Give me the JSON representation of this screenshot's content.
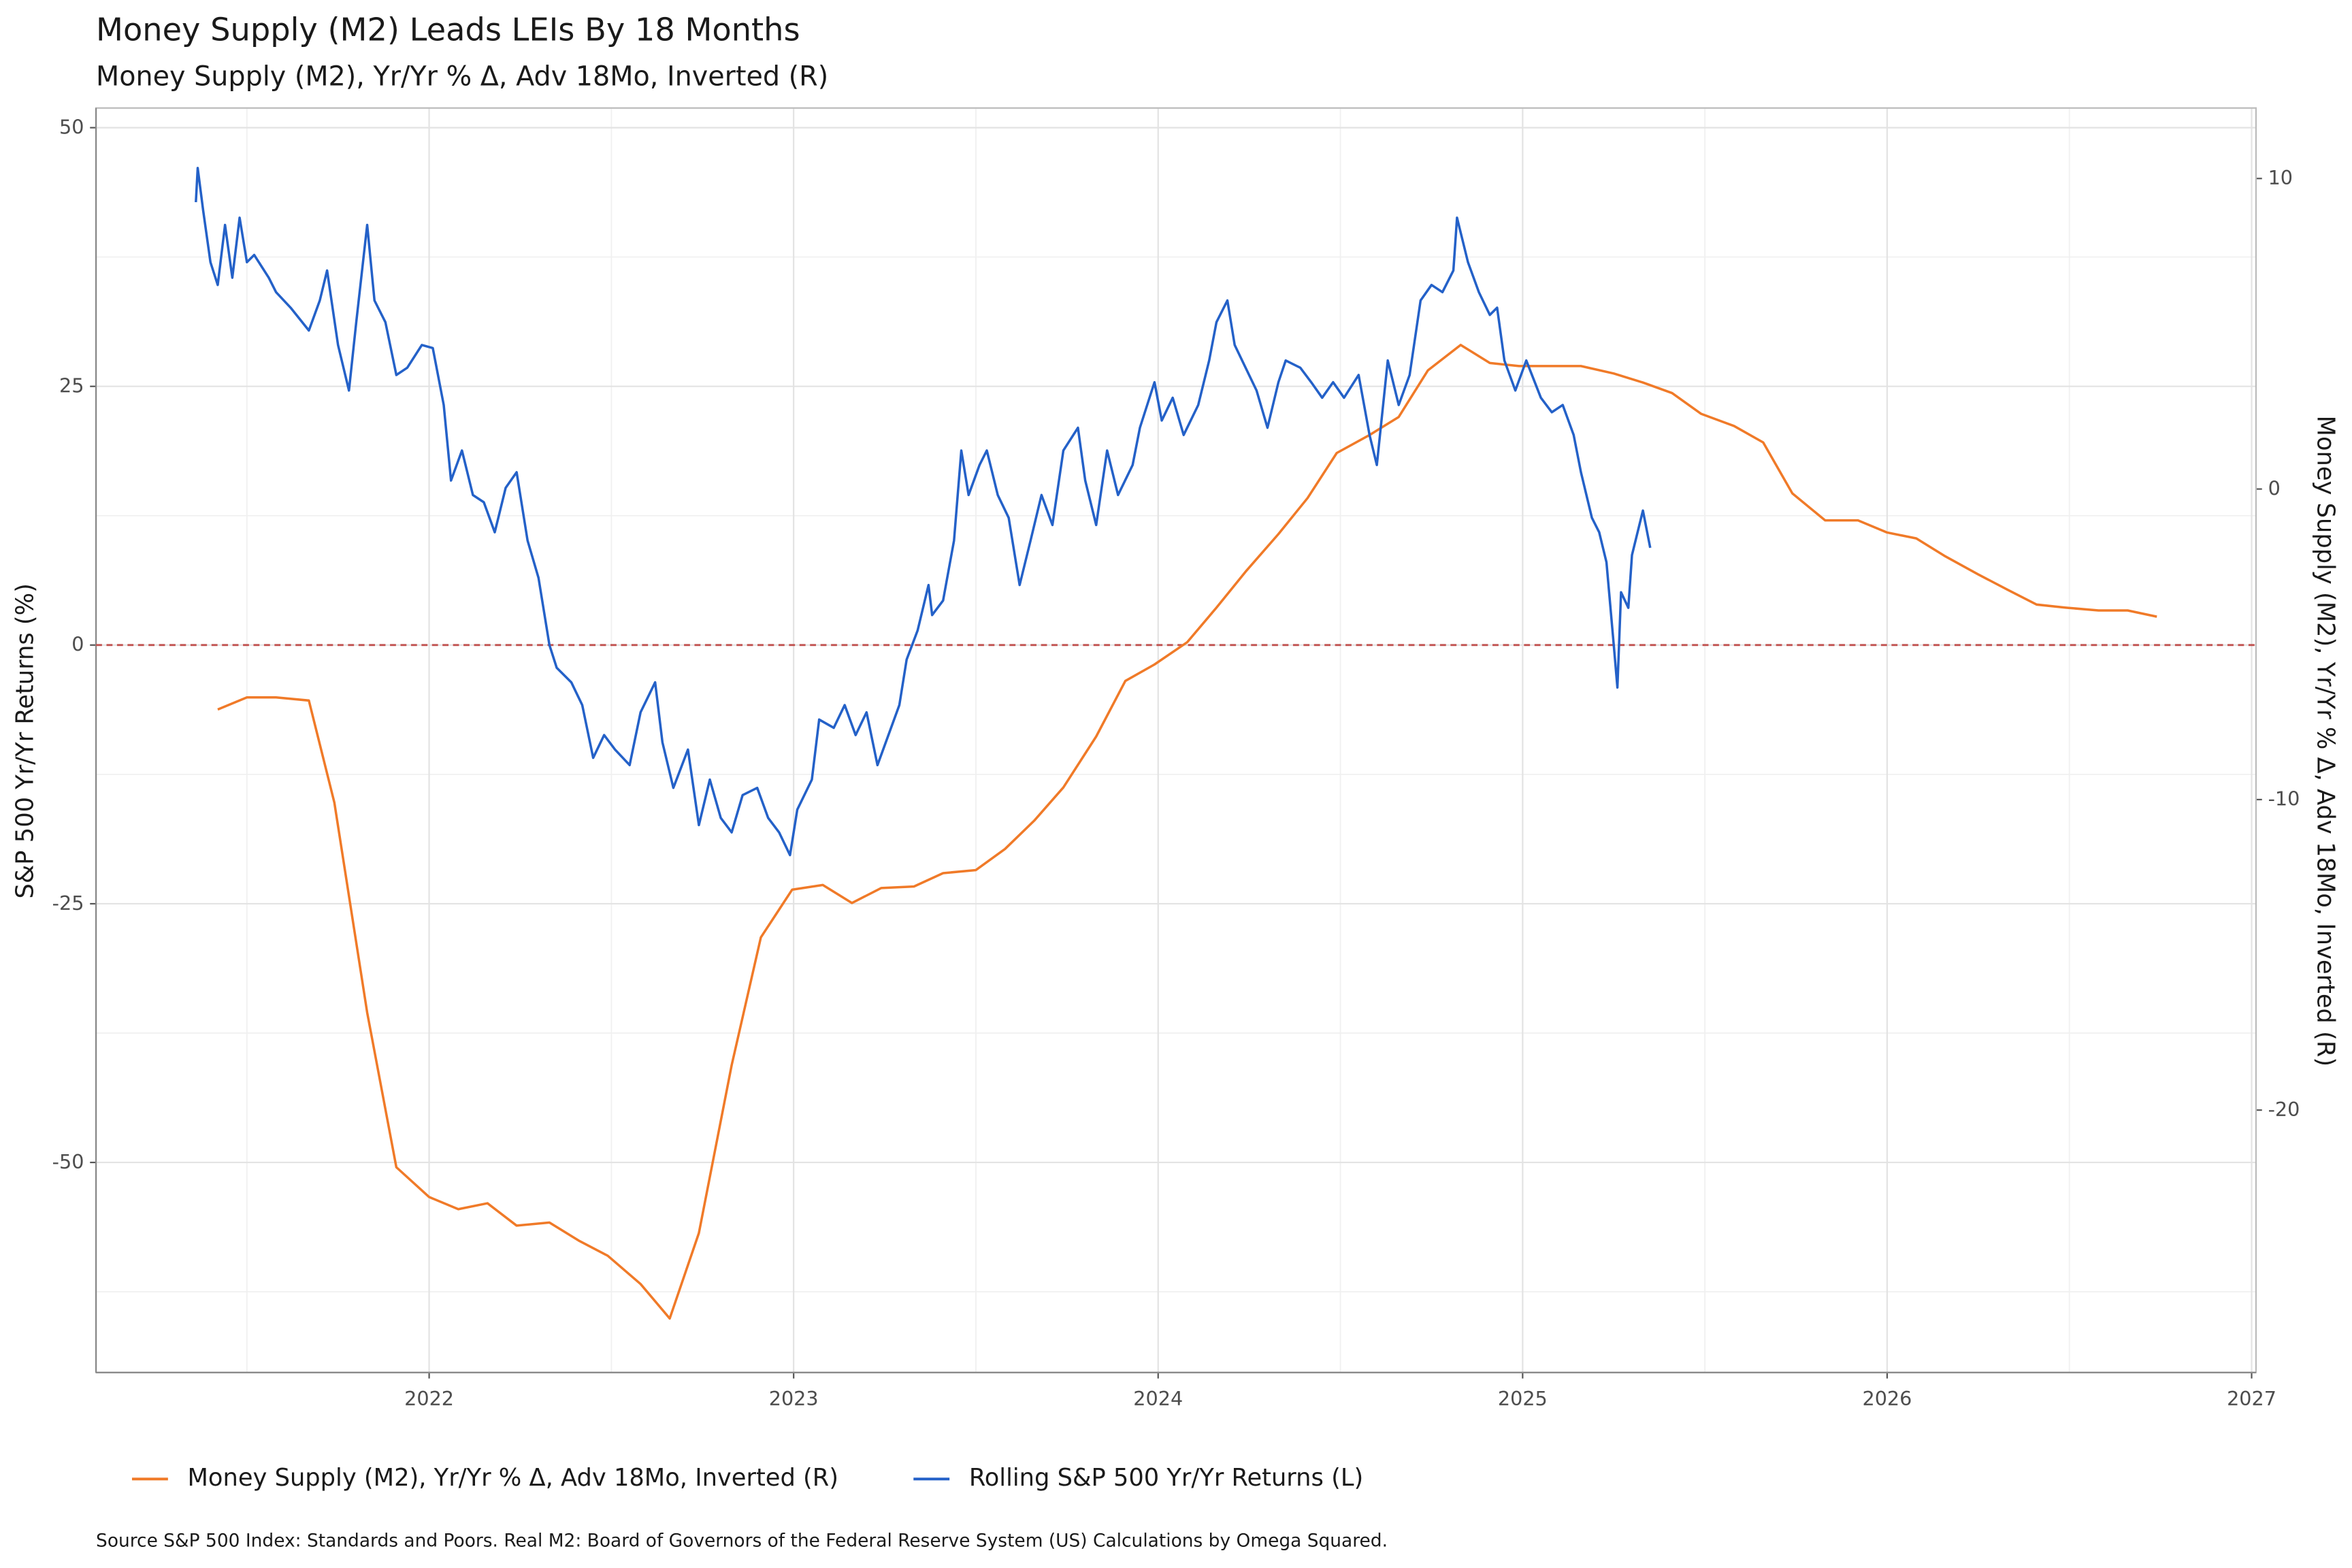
{
  "chart_data": {
    "type": "line",
    "title": "Money Supply (M2)  Leads LEIs By  18  Months",
    "subtitle": "Money Supply (M2), Yr/Yr % Δ, Adv 18Mo, Inverted (R)",
    "y_label": "S&P 500 Yr/Yr Returns (%)",
    "y2_label": "Money Supply (M2), Yr/Yr % Δ, Adv 18Mo, Inverted (R)",
    "source": "Source S&P 500 Index: Standards and Poors. Real M2:  Board of Governors of the Federal Reserve System (US) Calculations by Omega Squared.",
    "xlim": [
      2021.086,
      2027.012
    ],
    "xticks": [
      2022,
      2023,
      2024,
      2025,
      2026,
      2027
    ],
    "ylim": [
      -70.3,
      51.9
    ],
    "yticks": [
      -50,
      -25,
      0,
      25,
      50
    ],
    "y2lim": [
      -28.45,
      12.27
    ],
    "y2ticks": [
      -20,
      -10,
      0,
      10
    ],
    "grid": true,
    "legend": "bottom",
    "hline": {
      "value": 0,
      "color": "#c0504d"
    },
    "series": [
      {
        "name": "Money Supply (M2), Yr/Yr % Δ, Adv 18Mo, Inverted (R)",
        "color": "#f07a28",
        "axis": "y2",
        "x": [
          2021.42,
          2021.5,
          2021.58,
          2021.67,
          2021.74,
          2021.83,
          2021.91,
          2022.0,
          2022.08,
          2022.16,
          2022.24,
          2022.33,
          2022.41,
          2022.49,
          2022.58,
          2022.66,
          2022.74,
          2022.83,
          2022.91,
          2022.996,
          2023.08,
          2023.16,
          2023.24,
          2023.33,
          2023.41,
          2023.5,
          2023.58,
          2023.66,
          2023.74,
          2023.83,
          2023.91,
          2023.99,
          2024.08,
          2024.16,
          2024.24,
          2024.33,
          2024.41,
          2024.49,
          2024.58,
          2024.66,
          2024.74,
          2024.83,
          2024.91,
          2024.99,
          2025.08,
          2025.16,
          2025.25,
          2025.33,
          2025.41,
          2025.49,
          2025.58,
          2025.66,
          2025.74,
          2025.83,
          2025.92,
          2026.0,
          2026.08,
          2026.16,
          2026.25,
          2026.33,
          2026.41,
          2026.49,
          2026.58,
          2026.66,
          2026.74
        ],
        "values": [
          -7.1,
          -6.71,
          -6.71,
          -6.81,
          -10.1,
          -16.86,
          -21.84,
          -22.8,
          -23.19,
          -23.0,
          -23.72,
          -23.62,
          -24.2,
          -24.69,
          -25.6,
          -26.71,
          -23.96,
          -18.55,
          -14.44,
          -12.9,
          -12.75,
          -13.33,
          -12.85,
          -12.8,
          -12.37,
          -12.27,
          -11.59,
          -10.68,
          -9.61,
          -7.97,
          -6.18,
          -5.65,
          -4.93,
          -3.82,
          -2.66,
          -1.45,
          -0.29,
          1.16,
          1.74,
          2.32,
          3.82,
          4.64,
          4.06,
          3.96,
          3.96,
          3.96,
          3.72,
          3.43,
          3.09,
          2.42,
          2.03,
          1.5,
          -0.14,
          -1.01,
          -1.01,
          -1.4,
          -1.59,
          -2.17,
          -2.75,
          -3.24,
          -3.72,
          -3.82,
          -3.91,
          -3.91,
          -4.11
        ]
      },
      {
        "name": "Rolling S&P 500 Yr/Yr Returns (L)",
        "color": "#2461c8",
        "axis": "y",
        "x": [
          2021.36,
          2021.365,
          2021.38,
          2021.4,
          2021.42,
          2021.44,
          2021.46,
          2021.48,
          2021.5,
          2021.52,
          2021.56,
          2021.58,
          2021.62,
          2021.67,
          2021.7,
          2021.72,
          2021.75,
          2021.78,
          2021.8,
          2021.83,
          2021.85,
          2021.88,
          2021.91,
          2021.94,
          2021.98,
          2022.01,
          2022.04,
          2022.06,
          2022.09,
          2022.12,
          2022.15,
          2022.18,
          2022.21,
          2022.24,
          2022.27,
          2022.3,
          2022.33,
          2022.35,
          2022.39,
          2022.42,
          2022.45,
          2022.48,
          2022.51,
          2022.55,
          2022.58,
          2022.62,
          2022.64,
          2022.67,
          2022.71,
          2022.74,
          2022.77,
          2022.8,
          2022.83,
          2022.86,
          2022.9,
          2022.93,
          2022.96,
          2022.99,
          2023.01,
          2023.05,
          2023.07,
          2023.11,
          2023.14,
          2023.17,
          2023.2,
          2023.23,
          2023.26,
          2023.29,
          2023.31,
          2023.34,
          2023.37,
          2023.38,
          2023.41,
          2023.44,
          2023.46,
          2023.48,
          2023.51,
          2023.53,
          2023.56,
          2023.59,
          2023.62,
          2023.65,
          2023.68,
          2023.71,
          2023.74,
          2023.78,
          2023.8,
          2023.83,
          2023.86,
          2023.89,
          2023.93,
          2023.95,
          2023.99,
          2024.01,
          2024.04,
          2024.07,
          2024.11,
          2024.14,
          2024.16,
          2024.19,
          2024.21,
          2024.24,
          2024.27,
          2024.3,
          2024.33,
          2024.35,
          2024.39,
          2024.42,
          2024.45,
          2024.48,
          2024.51,
          2024.55,
          2024.58,
          2024.6,
          2024.63,
          2024.66,
          2024.69,
          2024.72,
          2024.75,
          2024.78,
          2024.81,
          2024.82,
          2024.85,
          2024.88,
          2024.91,
          2024.93,
          2024.95,
          2024.98,
          2025.01,
          2025.05,
          2025.08,
          2025.11,
          2025.14,
          2025.16,
          2025.19,
          2025.21,
          2025.23,
          2025.25,
          2025.26,
          2025.27,
          2025.29,
          2025.3,
          2025.33,
          2025.35
        ],
        "values": [
          42.8,
          46.1,
          42.0,
          37.0,
          34.8,
          40.6,
          35.5,
          41.3,
          37.0,
          37.7,
          35.5,
          34.1,
          32.6,
          30.4,
          33.3,
          36.2,
          29.0,
          24.6,
          31.2,
          40.6,
          33.3,
          31.2,
          26.1,
          26.8,
          29.0,
          28.7,
          23.2,
          15.9,
          18.8,
          14.5,
          13.8,
          10.9,
          15.2,
          16.7,
          10.1,
          6.5,
          0.0,
          -2.2,
          -3.6,
          -5.8,
          -10.9,
          -8.7,
          -10.1,
          -11.6,
          -6.5,
          -3.6,
          -9.4,
          -13.8,
          -10.1,
          -17.4,
          -13.0,
          -16.7,
          -18.1,
          -14.5,
          -13.8,
          -16.7,
          -18.1,
          -20.3,
          -15.9,
          -13.0,
          -7.2,
          -8.0,
          -5.8,
          -8.7,
          -6.5,
          -11.6,
          -8.7,
          -5.8,
          -1.4,
          1.4,
          5.8,
          2.9,
          4.3,
          10.1,
          18.8,
          14.5,
          17.4,
          18.8,
          14.5,
          12.3,
          5.8,
          10.1,
          14.5,
          11.6,
          18.8,
          21.0,
          15.9,
          11.6,
          18.8,
          14.5,
          17.4,
          21.0,
          25.4,
          21.7,
          23.9,
          20.3,
          23.2,
          27.5,
          31.2,
          33.3,
          29.0,
          26.8,
          24.6,
          21.0,
          25.4,
          27.5,
          26.8,
          25.4,
          23.9,
          25.4,
          23.9,
          26.1,
          20.3,
          17.4,
          27.5,
          23.2,
          26.1,
          33.3,
          34.8,
          34.1,
          36.2,
          41.3,
          37.0,
          34.1,
          31.9,
          32.6,
          27.5,
          24.6,
          27.5,
          23.9,
          22.5,
          23.2,
          20.3,
          16.7,
          12.3,
          10.9,
          8.0,
          0.0,
          -4.1,
          5.1,
          3.6,
          8.7,
          13.0,
          9.4
        ]
      }
    ]
  }
}
